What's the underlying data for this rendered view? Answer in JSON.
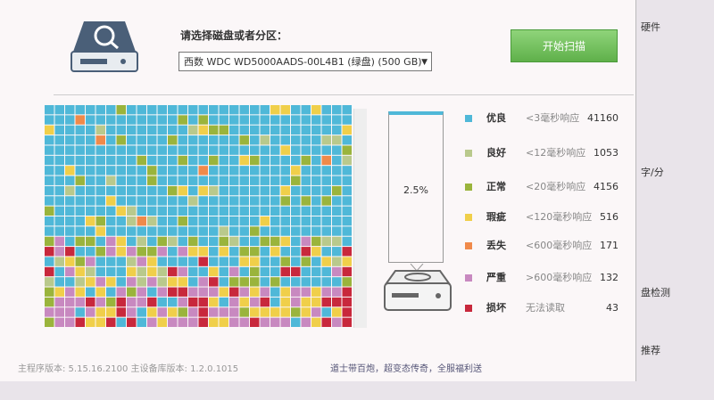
{
  "header": {
    "prompt": "请选择磁盘或者分区：",
    "disk": "西数 WDC WD5000AADS-00L4B1 (绿盘) (500 GB)",
    "button": "开始扫描"
  },
  "progress": "2.5%",
  "legend": {
    "rows": [
      {
        "label": "优良",
        "desc": "<3毫秒响应",
        "count": 41160,
        "color": "#4fb8d8"
      },
      {
        "label": "良好",
        "desc": "<12毫秒响应",
        "count": 1053,
        "color": "#b9c98c"
      },
      {
        "label": "正常",
        "desc": "<20毫秒响应",
        "count": 4156,
        "color": "#9ab43c"
      },
      {
        "label": "瑕疵",
        "desc": "<120毫秒响应",
        "count": 516,
        "color": "#f0cf4a"
      },
      {
        "label": "丢失",
        "desc": "<600毫秒响应",
        "count": 171,
        "color": "#f08a4a"
      },
      {
        "label": "严重",
        "desc": ">600毫秒响应",
        "count": 132,
        "color": "#c889c0"
      },
      {
        "label": "损坏",
        "desc": "无法读取",
        "count": 43,
        "color": "#c8283c"
      }
    ]
  },
  "footer": {
    "version": "主程序版本: 5.15.16.2100  主设备库版本: 1.2.0.1015",
    "ad": "道士带百炮，超变态传奇，全服福利送"
  },
  "side": [
    "硬件",
    "字/分",
    "盘检测",
    "推荐"
  ]
}
